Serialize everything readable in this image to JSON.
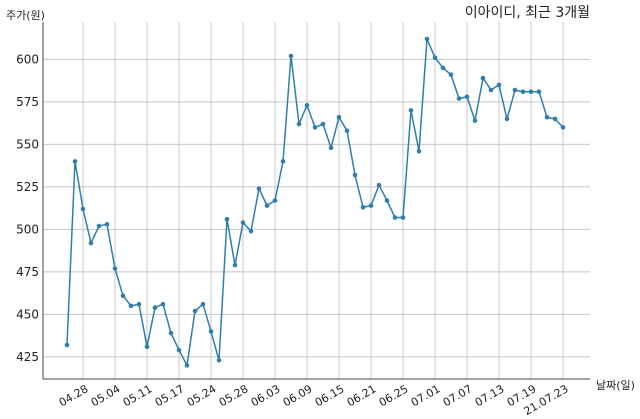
{
  "chart_data": {
    "type": "line",
    "title": "이아이디, 최근 3개월",
    "ylabel": "주가(원)",
    "xlabel": "날짜(일)",
    "ylim": [
      412,
      622
    ],
    "yticks": [
      425,
      450,
      475,
      500,
      525,
      550,
      575,
      600
    ],
    "xtick_labels": [
      "04.28",
      "05.04",
      "05.11",
      "05.17",
      "05.24",
      "05.28",
      "06.03",
      "06.09",
      "06.15",
      "06.21",
      "06.25",
      "07.01",
      "07.07",
      "07.13",
      "07.19",
      "21.07.23"
    ],
    "xtick_index": [
      2,
      6,
      10,
      14,
      18,
      22,
      26,
      30,
      34,
      38,
      42,
      46,
      50,
      54,
      58,
      62
    ],
    "grid": true,
    "color": "#2e7fad",
    "series": [
      {
        "values": [
          432,
          540,
          512,
          492,
          502,
          503,
          477,
          461,
          455,
          456,
          431,
          454,
          456,
          439,
          429,
          420,
          452,
          456,
          440,
          423,
          506,
          479,
          504,
          499,
          524,
          514,
          517,
          540,
          602,
          562,
          573,
          560,
          562,
          548,
          566,
          558,
          532,
          513,
          514,
          526,
          517,
          507,
          507,
          570,
          546,
          612,
          601,
          595,
          591,
          577,
          578,
          564,
          589,
          582,
          585,
          565,
          582,
          581,
          581,
          581,
          566,
          565,
          560
        ]
      }
    ]
  }
}
